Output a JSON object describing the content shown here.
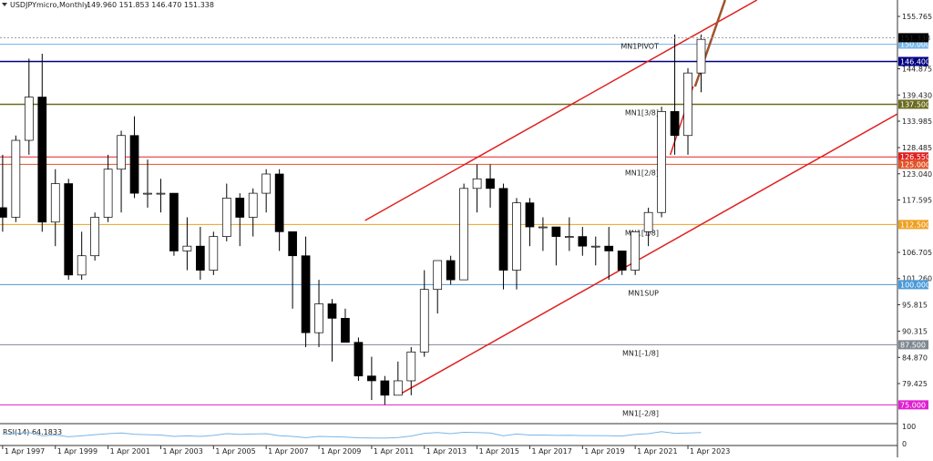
{
  "chart_data": {
    "type": "candlestick",
    "title": "USDJPYmicro,Monthly",
    "ohlc_text": "149.960 151.853 146.470 151.338",
    "xlim": [
      1997.15,
      2031.2
    ],
    "ylim": [
      71.66,
      159.18
    ],
    "xticks": [
      {
        "value": 1997.25,
        "label": "1 Apr 1997"
      },
      {
        "value": 1999.25,
        "label": "1 Apr 1999"
      },
      {
        "value": 2001.25,
        "label": "1 Apr 2001"
      },
      {
        "value": 2003.25,
        "label": "1 Apr 2003"
      },
      {
        "value": 2005.25,
        "label": "1 Apr 2005"
      },
      {
        "value": 2007.25,
        "label": "1 Apr 2007"
      },
      {
        "value": 2009.25,
        "label": "1 Apr 2009"
      },
      {
        "value": 2011.25,
        "label": "1 Apr 2011"
      },
      {
        "value": 2013.25,
        "label": "1 Apr 2013"
      },
      {
        "value": 2015.25,
        "label": "1 Apr 2015"
      },
      {
        "value": 2017.25,
        "label": "1 Apr 2017"
      },
      {
        "value": 2019.25,
        "label": "1 Apr 2019"
      },
      {
        "value": 2021.25,
        "label": "1 Apr 2021"
      },
      {
        "value": 2023.25,
        "label": "1 Apr 2023"
      }
    ],
    "yticks": [
      155.765,
      144.875,
      {
        "value": 139.43,
        "label": "139.430"
      },
      133.985,
      128.485,
      {
        "value": 123.04,
        "label": "123.040"
      },
      117.595,
      106.705,
      {
        "value": 101.26,
        "label": "101.260"
      },
      95.815,
      90.315,
      {
        "value": 84.87,
        "label": "84.870"
      },
      79.425
    ],
    "x": [
      1997.25,
      1997.75,
      1998.25,
      1998.75,
      1999.25,
      1999.75,
      2000.25,
      2000.75,
      2001.25,
      2001.75,
      2002.25,
      2002.75,
      2003.25,
      2003.75,
      2004.25,
      2004.75,
      2005.25,
      2005.75,
      2006.25,
      2006.75,
      2007.25,
      2007.75,
      2008.25,
      2008.75,
      2009.25,
      2009.75,
      2010.25,
      2010.75,
      2011.25,
      2011.75,
      2012.25,
      2012.75,
      2013.25,
      2013.75,
      2014.25,
      2014.75,
      2015.25,
      2015.75,
      2016.25,
      2016.75,
      2017.25,
      2017.75,
      2018.25,
      2018.75,
      2019.25,
      2019.75,
      2020.25,
      2020.75,
      2021.25,
      2021.75,
      2022.25,
      2022.75,
      2023.25,
      2023.75
    ],
    "open": [
      116,
      114,
      130,
      139,
      113,
      121,
      102,
      106,
      114,
      124,
      131,
      119,
      119,
      119,
      107,
      108,
      103,
      110,
      118,
      114,
      119,
      123,
      111,
      106,
      90,
      96,
      93,
      88,
      81,
      80,
      77,
      80,
      86,
      99,
      105,
      101,
      120,
      122,
      120,
      103,
      117,
      112,
      112,
      110,
      110,
      108,
      108,
      107,
      103,
      111,
      115,
      136,
      131,
      144
    ],
    "high": [
      127,
      131,
      147,
      148,
      124,
      122,
      111,
      115,
      127,
      132,
      135,
      126,
      122,
      119,
      114,
      112,
      111,
      121,
      119,
      120,
      124,
      124,
      111,
      110,
      101,
      97,
      95,
      89,
      85,
      81,
      84,
      87,
      103,
      105,
      106,
      121,
      125,
      125,
      121,
      118,
      118,
      114,
      112,
      114,
      112,
      110,
      112,
      107,
      111,
      116,
      137,
      152,
      145,
      152
    ],
    "low": [
      111,
      113,
      127,
      111,
      108,
      101,
      101,
      105,
      113,
      115,
      118,
      116,
      115,
      106,
      103,
      101,
      102,
      109,
      108,
      110,
      115,
      107,
      95,
      87,
      87,
      84,
      88,
      80,
      76,
      75,
      77,
      77,
      85,
      94,
      100,
      101,
      115,
      116,
      99,
      99,
      108,
      107,
      104,
      107,
      106,
      104,
      101,
      102,
      102,
      108,
      114,
      127,
      127,
      140
    ],
    "close": [
      114,
      130,
      139,
      113,
      121,
      102,
      106,
      114,
      124,
      131,
      119,
      119,
      119,
      107,
      108,
      103,
      110,
      118,
      114,
      119,
      123,
      111,
      106,
      90,
      96,
      93,
      88,
      81,
      80,
      77,
      80,
      86,
      99,
      105,
      101,
      120,
      122,
      120,
      103,
      117,
      112,
      112,
      110,
      110,
      108,
      108,
      107,
      103,
      111,
      115,
      136,
      131,
      144,
      151
    ],
    "current_price": {
      "value": 151.338,
      "label": "151.338"
    },
    "levels": [
      {
        "name": "MN1PIVOT",
        "value": 150,
        "label": "150.000",
        "color": "#7ab6e8"
      },
      {
        "name": null,
        "value": 146.4,
        "label": "146.400",
        "color": "#000080"
      },
      {
        "name": "MN1[3/8]",
        "value": 137.5,
        "label": "137.500",
        "color": "#6b6b1f"
      },
      {
        "name": null,
        "value": 126.55,
        "label": "126.550",
        "color": "#e02020"
      },
      {
        "name": "MN1[2/8]",
        "value": 125,
        "label": "125.000",
        "color": "#e2532a"
      },
      {
        "name": "MN1[1/8]",
        "value": 112.5,
        "label": "112.500",
        "color": "#f0a020"
      },
      {
        "name": "MN1SUP",
        "value": 100,
        "label": "100.000",
        "color": "#4a9ad8"
      },
      {
        "name": "MN1[-1/8]",
        "value": 87.5,
        "label": "87.500",
        "color": "#808890"
      },
      {
        "name": "MN1[-2/8]",
        "value": 75,
        "label": "75.000",
        "color": "#e020d0"
      }
    ],
    "trendlines": [
      {
        "color": "#e02020",
        "x": [
          2011.0,
          2025.87
        ],
        "y": [
          113.33,
          159.18
        ]
      },
      {
        "color": "#e02020",
        "x": [
          2012.37,
          2031.2
        ],
        "y": [
          77.35,
          135.5
        ]
      },
      {
        "color": "#e02020",
        "x": [
          2022.58,
          2023.45
        ],
        "y": [
          126.97,
          141.2
        ]
      },
      {
        "color": "#a0522d",
        "x": [
          2023.52,
          2024.66
        ],
        "y": [
          141.2,
          159.18
        ]
      }
    ],
    "rsi": {
      "label": "RSI(14) 64.1833",
      "ylim": [
        0,
        100
      ],
      "yticks": [
        0,
        100
      ],
      "values": [
        55,
        60,
        64,
        45,
        50,
        40,
        45,
        52,
        58,
        62,
        55,
        52,
        50,
        42,
        45,
        42,
        48,
        58,
        54,
        56,
        58,
        46,
        42,
        35,
        42,
        40,
        38,
        34,
        33,
        32,
        36,
        44,
        60,
        64,
        58,
        66,
        64,
        62,
        45,
        56,
        50,
        50,
        48,
        49,
        47,
        47,
        46,
        44,
        54,
        58,
        70,
        60,
        62,
        64
      ]
    }
  }
}
